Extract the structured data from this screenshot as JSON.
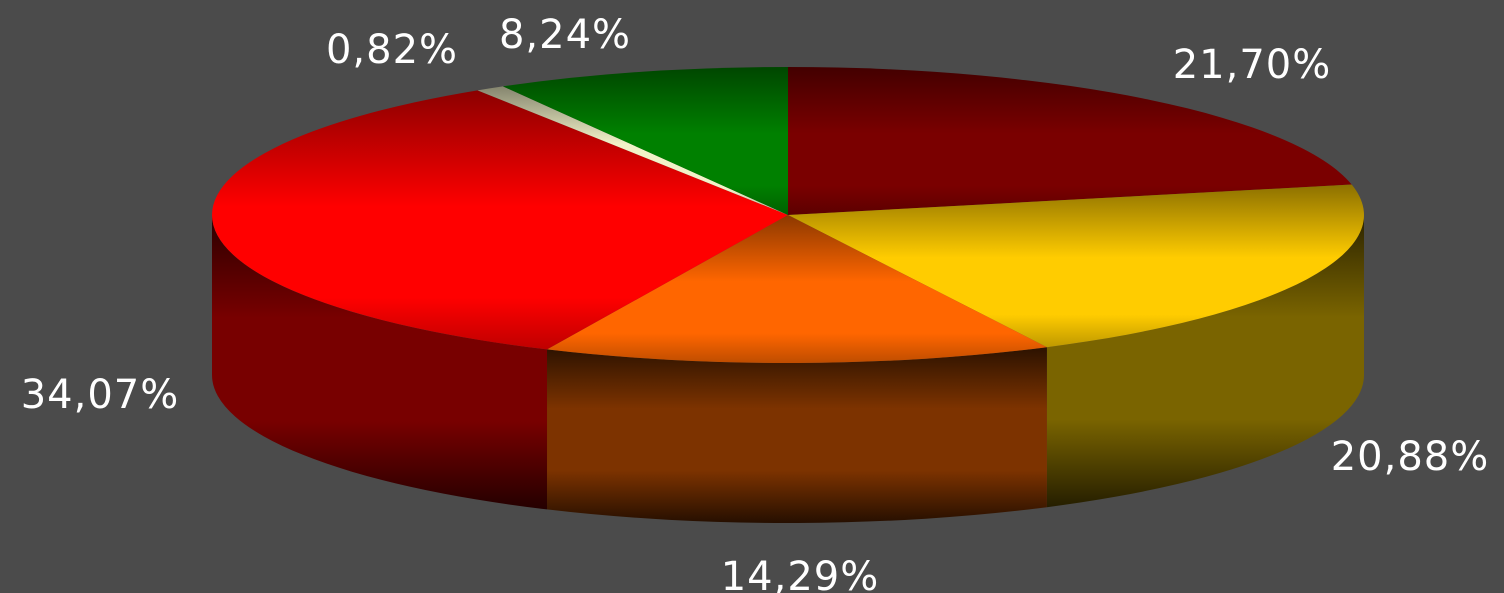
{
  "chart_data": {
    "type": "pie",
    "style": "3d",
    "title": "",
    "slices": [
      {
        "label": "21,70%",
        "value": 21.7,
        "color": "#7a0000",
        "side_color": "#5a0000"
      },
      {
        "label": "20,88%",
        "value": 20.88,
        "color": "#ffcc00",
        "side_color": "#7a6400"
      },
      {
        "label": "14,29%",
        "value": 14.29,
        "color": "#ff6600",
        "side_color": "#7d3300"
      },
      {
        "label": "34,07%",
        "value": 34.07,
        "color": "#ff0000",
        "side_color": "#780000"
      },
      {
        "label": "0,82%",
        "value": 0.82,
        "color": "#f2f2c8",
        "side_color": "#8a8a70"
      },
      {
        "label": "8,24%",
        "value": 8.24,
        "color": "#008000",
        "side_color": "#004d00"
      }
    ],
    "legend": "none"
  }
}
